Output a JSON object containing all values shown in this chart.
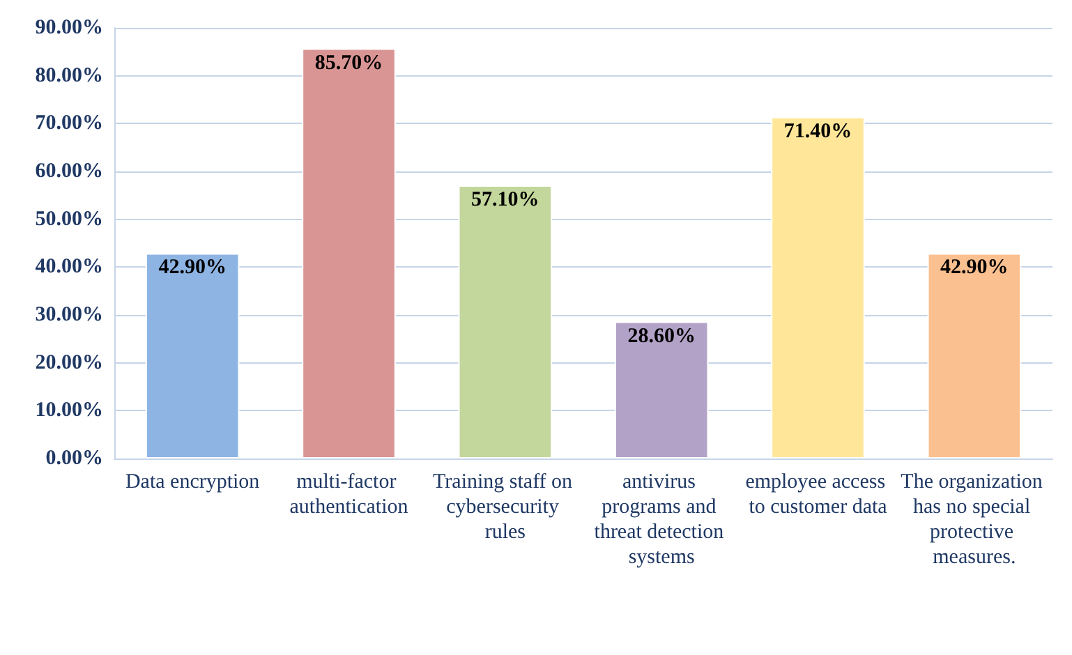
{
  "chart_data": {
    "type": "bar",
    "categories": [
      "Data encryption",
      "multi-factor authentication",
      "Training staff on cybersecurity rules",
      "antivirus programs and threat detection systems",
      "employee access to customer data",
      "The organization has no special protective measures."
    ],
    "values": [
      42.9,
      85.7,
      57.1,
      28.6,
      71.4,
      42.9
    ],
    "colors": [
      "#8eb4e3",
      "#d99594",
      "#c3d69b",
      "#b3a2c7",
      "#ffe699",
      "#fac090"
    ],
    "value_labels": [
      "42.90%",
      "85.70%",
      "57.10%",
      "28.60%",
      "71.40%",
      "42.90%"
    ],
    "ylim": [
      0,
      90
    ],
    "yticks": [
      {
        "value": 0,
        "label": "0.00%"
      },
      {
        "value": 10,
        "label": "10.00%"
      },
      {
        "value": 20,
        "label": "20.00%"
      },
      {
        "value": 30,
        "label": "30.00%"
      },
      {
        "value": 40,
        "label": "40.00%"
      },
      {
        "value": 50,
        "label": "50.00%"
      },
      {
        "value": 60,
        "label": "60.00%"
      },
      {
        "value": 70,
        "label": "70.00%"
      },
      {
        "value": 80,
        "label": "80.00%"
      },
      {
        "value": 90,
        "label": "90.00%"
      }
    ],
    "grid": "y"
  }
}
